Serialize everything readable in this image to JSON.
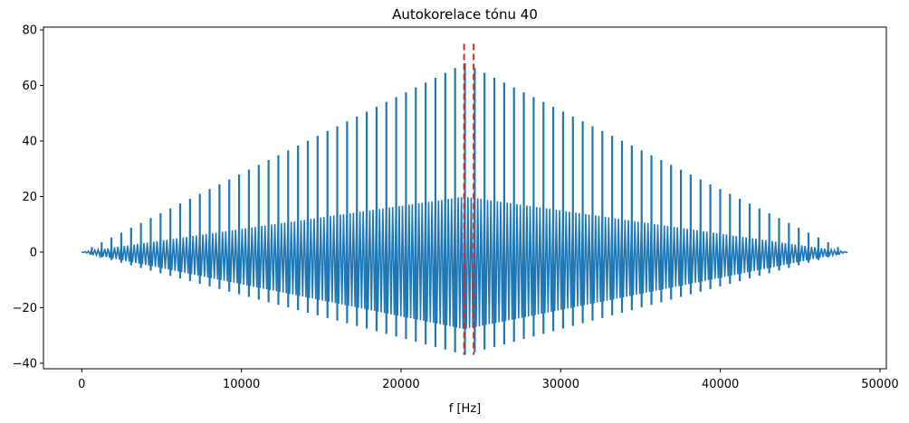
{
  "chart_data": {
    "type": "line",
    "title": "Autokorelace tónu 40",
    "xlabel": "f [Hz]",
    "ylabel": "",
    "xlim": [
      -2400,
      50400
    ],
    "ylim": [
      -42,
      81
    ],
    "x_ticks": [
      0,
      10000,
      20000,
      30000,
      40000,
      50000
    ],
    "y_ticks": [
      -40,
      -20,
      0,
      20,
      40,
      60,
      80
    ],
    "grid": false,
    "legend": "none",
    "series": [
      {
        "color": "#1f77b4",
        "x_range": [
          0,
          48000
        ],
        "envelope": {
          "center_x": 24000,
          "primary_peak_max": 68,
          "secondary_peak_max": 20,
          "negative_min": -37,
          "primary_peak_spacing": 615,
          "secondary_peak_spacing": 205
        }
      }
    ],
    "vlines": [
      {
        "x": 23950,
        "ymin": -37,
        "ymax": 75,
        "color": "#d62728",
        "style": "dashed"
      },
      {
        "x": 24550,
        "ymin": -37,
        "ymax": 75,
        "color": "#d62728",
        "style": "dashed"
      }
    ]
  }
}
